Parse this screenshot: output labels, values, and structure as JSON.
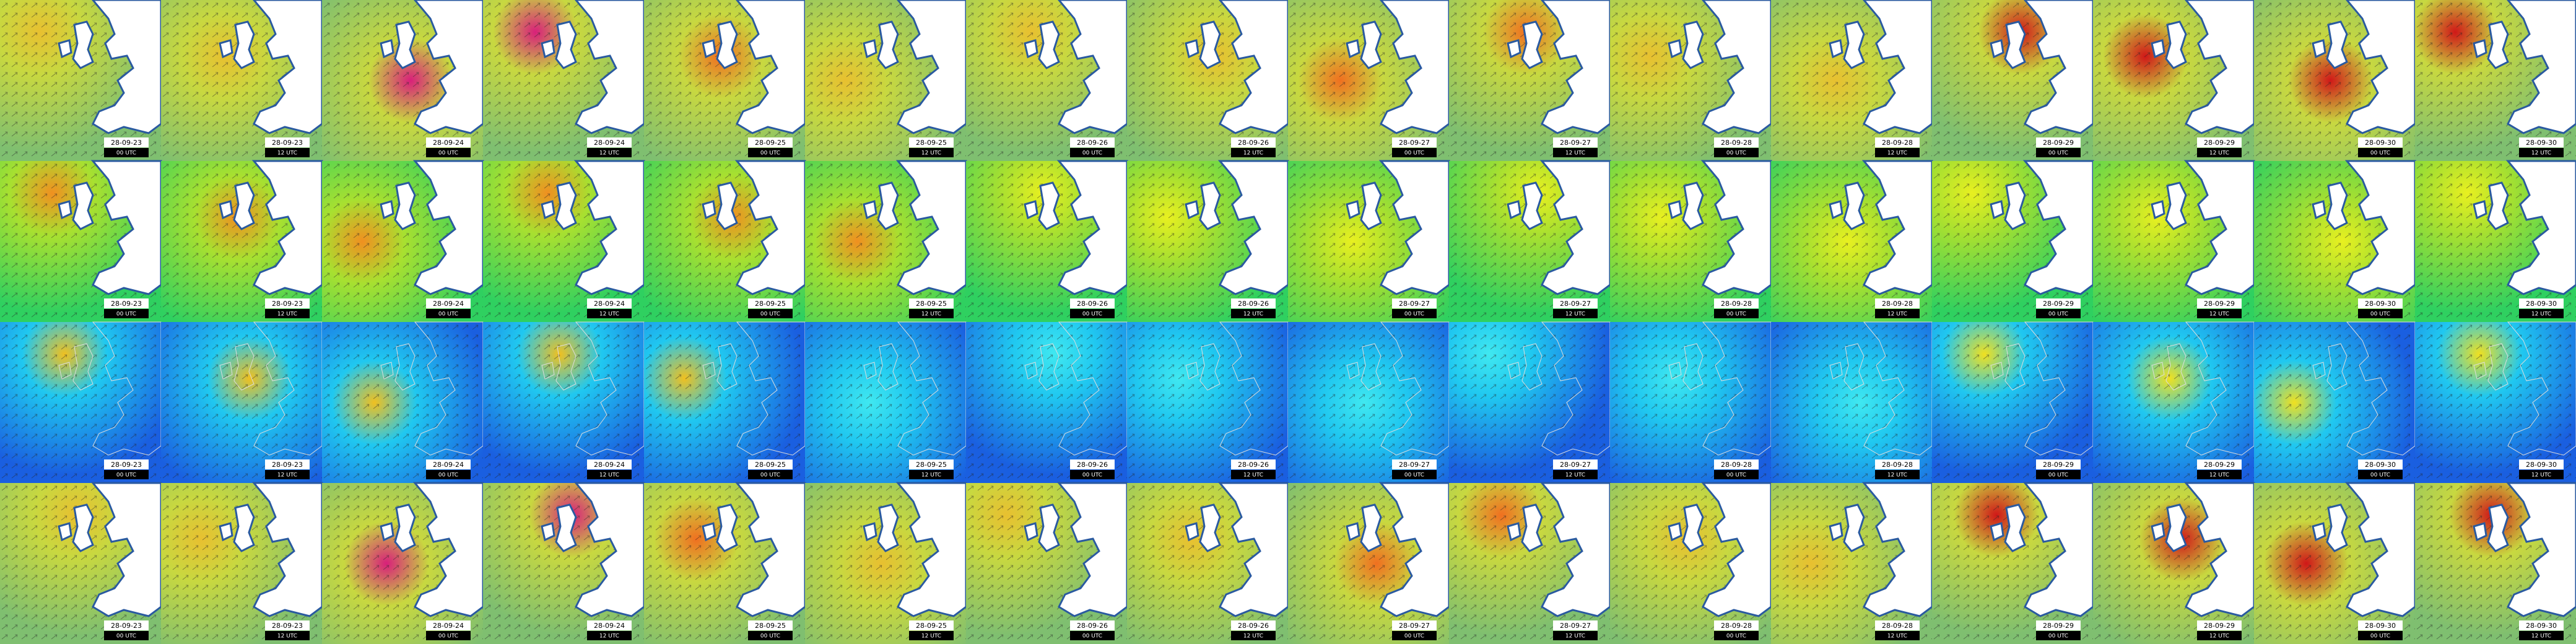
{
  "rows": [
    {
      "tiles": [
        {
          "date": "28-09-23",
          "time": "00 UTC"
        },
        {
          "date": "28-09-23",
          "time": "12 UTC"
        },
        {
          "date": "28-09-24",
          "time": "00 UTC"
        },
        {
          "date": "28-09-24",
          "time": "12 UTC"
        },
        {
          "date": "28-09-25",
          "time": "00 UTC"
        },
        {
          "date": "28-09-25",
          "time": "12 UTC"
        },
        {
          "date": "28-09-26",
          "time": "00 UTC"
        },
        {
          "date": "28-09-26",
          "time": "12 UTC"
        },
        {
          "date": "28-09-27",
          "time": "00 UTC"
        },
        {
          "date": "28-09-27",
          "time": "12 UTC"
        },
        {
          "date": "28-09-28",
          "time": "00 UTC"
        },
        {
          "date": "28-09-28",
          "time": "12 UTC"
        },
        {
          "date": "28-09-29",
          "time": "00 UTC"
        },
        {
          "date": "28-09-29",
          "time": "12 UTC"
        },
        {
          "date": "28-09-30",
          "time": "00 UTC"
        },
        {
          "date": "28-09-30",
          "time": "12 UTC"
        }
      ]
    },
    {
      "tiles": [
        {
          "date": "28-09-23",
          "time": "00 UTC"
        },
        {
          "date": "28-09-23",
          "time": "12 UTC"
        },
        {
          "date": "28-09-24",
          "time": "00 UTC"
        },
        {
          "date": "28-09-24",
          "time": "12 UTC"
        },
        {
          "date": "28-09-25",
          "time": "00 UTC"
        },
        {
          "date": "28-09-25",
          "time": "12 UTC"
        },
        {
          "date": "28-09-26",
          "time": "00 UTC"
        },
        {
          "date": "28-09-26",
          "time": "12 UTC"
        },
        {
          "date": "28-09-27",
          "time": "00 UTC"
        },
        {
          "date": "28-09-27",
          "time": "12 UTC"
        },
        {
          "date": "28-09-28",
          "time": "00 UTC"
        },
        {
          "date": "28-09-28",
          "time": "12 UTC"
        },
        {
          "date": "28-09-29",
          "time": "00 UTC"
        },
        {
          "date": "28-09-29",
          "time": "12 UTC"
        },
        {
          "date": "28-09-30",
          "time": "00 UTC"
        },
        {
          "date": "28-09-30",
          "time": "12 UTC"
        }
      ]
    },
    {
      "tiles": [
        {
          "date": "28-09-23",
          "time": "00 UTC"
        },
        {
          "date": "28-09-23",
          "time": "12 UTC"
        },
        {
          "date": "28-09-24",
          "time": "00 UTC"
        },
        {
          "date": "28-09-24",
          "time": "12 UTC"
        },
        {
          "date": "28-09-25",
          "time": "00 UTC"
        },
        {
          "date": "28-09-25",
          "time": "12 UTC"
        },
        {
          "date": "28-09-26",
          "time": "00 UTC"
        },
        {
          "date": "28-09-26",
          "time": "12 UTC"
        },
        {
          "date": "28-09-27",
          "time": "00 UTC"
        },
        {
          "date": "28-09-27",
          "time": "12 UTC"
        },
        {
          "date": "28-09-28",
          "time": "00 UTC"
        },
        {
          "date": "28-09-28",
          "time": "12 UTC"
        },
        {
          "date": "28-09-29",
          "time": "00 UTC"
        },
        {
          "date": "28-09-29",
          "time": "12 UTC"
        },
        {
          "date": "28-09-30",
          "time": "00 UTC"
        },
        {
          "date": "28-09-30",
          "time": "12 UTC"
        }
      ]
    },
    {
      "tiles": [
        {
          "date": "28-09-23",
          "time": "00 UTC"
        },
        {
          "date": "28-09-23",
          "time": "12 UTC"
        },
        {
          "date": "28-09-24",
          "time": "00 UTC"
        },
        {
          "date": "28-09-24",
          "time": "12 UTC"
        },
        {
          "date": "28-09-25",
          "time": "00 UTC"
        },
        {
          "date": "28-09-25",
          "time": "12 UTC"
        },
        {
          "date": "28-09-26",
          "time": "00 UTC"
        },
        {
          "date": "28-09-26",
          "time": "12 UTC"
        },
        {
          "date": "28-09-27",
          "time": "00 UTC"
        },
        {
          "date": "28-09-27",
          "time": "12 UTC"
        },
        {
          "date": "28-09-28",
          "time": "00 UTC"
        },
        {
          "date": "28-09-28",
          "time": "12 UTC"
        },
        {
          "date": "28-09-29",
          "time": "00 UTC"
        },
        {
          "date": "28-09-29",
          "time": "12 UTC"
        },
        {
          "date": "28-09-30",
          "time": "00 UTC"
        },
        {
          "date": "28-09-30",
          "time": "12 UTC"
        }
      ]
    }
  ]
}
